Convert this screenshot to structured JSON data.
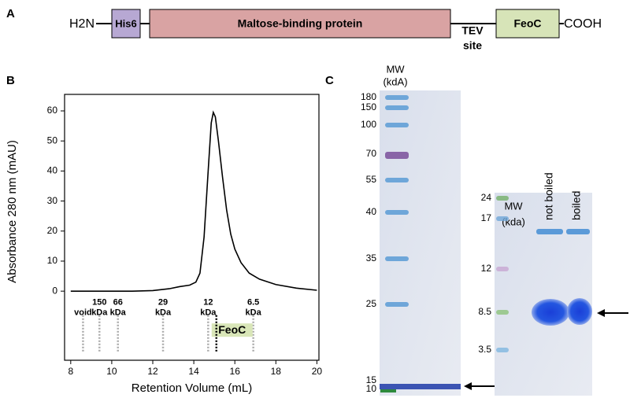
{
  "panel_a": {
    "label": "A",
    "n_term": "H2N",
    "his": "His6",
    "mbp": "Maltose-binding protein",
    "tev": [
      "TEV",
      "site"
    ],
    "feoc": "FeoC",
    "c_term": "COOH"
  },
  "chart_data": {
    "type": "line",
    "panel_label": "B",
    "x_label": "Retention Volume (mL)",
    "y_label": "Absorbance 280 nm (mAU)",
    "xlim": [
      7.7,
      20.1
    ],
    "ylim": [
      -23,
      65.5
    ],
    "xticks": [
      8,
      10,
      12,
      14,
      16,
      18,
      20
    ],
    "yticks": [
      0,
      10,
      20,
      30,
      40,
      50,
      60
    ],
    "series": [
      {
        "color": "#000000",
        "x": [
          8,
          11,
          12,
          12.8,
          13.3,
          13.8,
          14.1,
          14.3,
          14.5,
          14.7,
          14.85,
          14.95,
          15.05,
          15.2,
          15.4,
          15.6,
          15.8,
          16,
          16.3,
          16.7,
          17.2,
          18,
          19,
          20
        ],
        "values": [
          0,
          0,
          0.2,
          0.8,
          1.5,
          2,
          3,
          6,
          18,
          40,
          56,
          59.5,
          58,
          50,
          38,
          27,
          19,
          14,
          9.5,
          6,
          4,
          2.2,
          1,
          0.3
        ]
      }
    ],
    "standards": [
      {
        "text": [
          "void"
        ],
        "x": 8.6
      },
      {
        "text": [
          "150",
          "kDa"
        ],
        "x": 9.4
      },
      {
        "text": [
          "66",
          "kDa"
        ],
        "x": 10.3
      },
      {
        "text": [
          "29",
          "kDa"
        ],
        "x": 12.5
      },
      {
        "text": [
          "12",
          "kDa"
        ],
        "x": 14.7
      },
      {
        "text": [
          "6.5",
          "kDa"
        ],
        "x": 16.9
      }
    ],
    "sample": {
      "text": "FeoC",
      "x": 15.1
    }
  },
  "panel_c": {
    "label": "C",
    "gel1": {
      "mw": [
        "MW",
        "(kdA)"
      ],
      "ladder": [
        "180",
        "150",
        "100",
        "70",
        "55",
        "40",
        "35",
        "25",
        "15",
        "10"
      ]
    },
    "gel2": {
      "mw": [
        "MW",
        "(kda)"
      ],
      "lanes": [
        "not boiled",
        "boiled"
      ],
      "ladder": [
        "24",
        "17",
        "12",
        "8.5",
        "3.5"
      ]
    }
  }
}
